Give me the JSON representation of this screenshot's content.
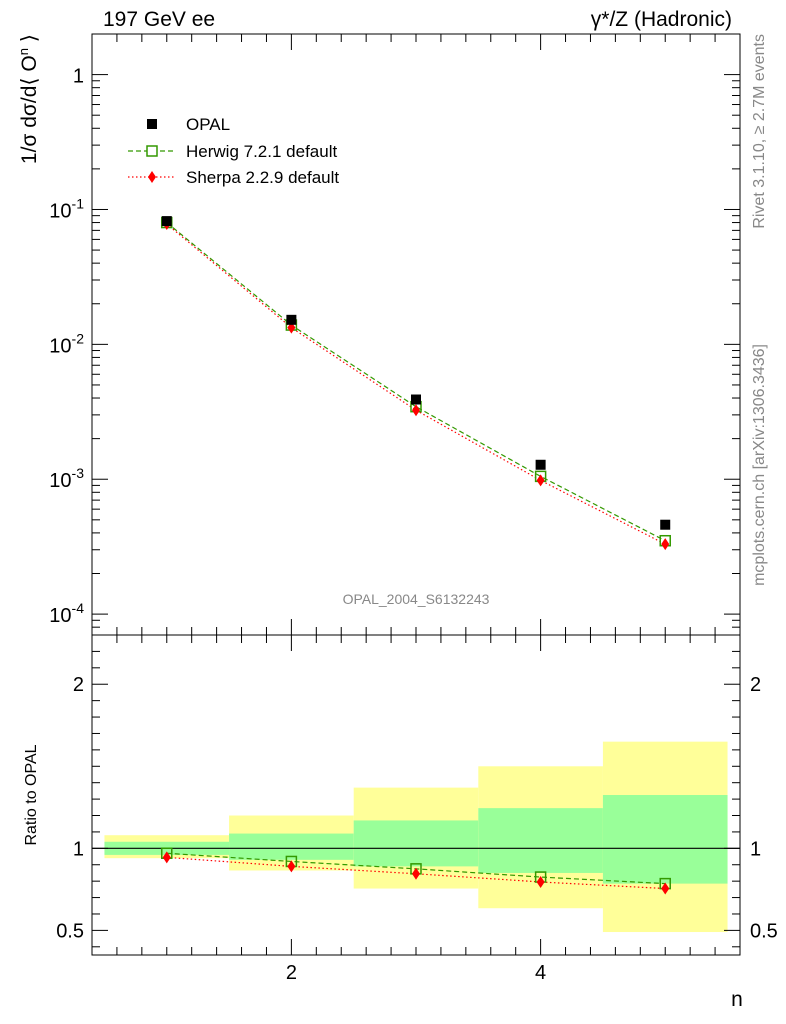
{
  "header": {
    "left_title": "197 GeV ee",
    "right_title": "γ*/Z (Hadronic)"
  },
  "side_labels": {
    "rivet": "Rivet 3.1.10, ≥ 2.7M events",
    "mcplots": "mcplots.cern.ch [arXiv:1306.3436]"
  },
  "watermark": "OPAL_2004_S6132243",
  "colors": {
    "data": "#000000",
    "herwig": "#339900",
    "sherpa": "#ff0000",
    "band_outer": "#ffff99",
    "band_inner": "#99ff99"
  },
  "chart_data": [
    {
      "type": "scatter",
      "panel": "main",
      "ylabel": "1/σ dσ/d⟨ O^n ⟩",
      "yscale": "log",
      "ylim": [
        7e-05,
        2.0
      ],
      "xlim": [
        0.4,
        5.6
      ],
      "y_tick_labels": [
        "1",
        "10^-1",
        "10^-2",
        "10^-3",
        "10^-4"
      ],
      "legend": [
        "OPAL",
        "Herwig 7.2.1 default",
        "Sherpa 2.2.9 default"
      ],
      "legend_position": "top-left",
      "x": [
        1,
        2,
        3,
        4,
        5
      ],
      "series": [
        {
          "name": "OPAL",
          "style": "markers-square",
          "values": [
            0.082,
            0.0152,
            0.0039,
            0.00128,
            0.00046
          ]
        },
        {
          "name": "Herwig 7.2.1 default",
          "style": "dashed-open-square",
          "values": [
            0.08,
            0.0139,
            0.00345,
            0.00105,
            0.00035
          ]
        },
        {
          "name": "Sherpa 2.2.9 default",
          "style": "dotted-diamond",
          "values": [
            0.078,
            0.0133,
            0.00325,
            0.00098,
            0.00033
          ]
        }
      ]
    },
    {
      "type": "scatter",
      "panel": "ratio",
      "xlabel": "n",
      "ylabel": "Ratio to OPAL",
      "ylim": [
        0.35,
        2.3
      ],
      "xlim": [
        0.4,
        5.6
      ],
      "x_tick_labels": [
        "2",
        "4"
      ],
      "y_tick_labels": [
        "0.5",
        "1",
        "2"
      ],
      "x": [
        1,
        2,
        3,
        4,
        5
      ],
      "bands": {
        "bins": [
          [
            0.5,
            1.5
          ],
          [
            1.5,
            2.5
          ],
          [
            2.5,
            3.5
          ],
          [
            3.5,
            4.5
          ],
          [
            4.5,
            5.5
          ]
        ],
        "outer_lo": [
          0.94,
          0.865,
          0.755,
          0.635,
          0.49
        ],
        "outer_hi": [
          1.08,
          1.2,
          1.37,
          1.5,
          1.65
        ],
        "inner_lo": [
          0.96,
          0.93,
          0.89,
          0.85,
          0.785
        ],
        "inner_hi": [
          1.04,
          1.09,
          1.17,
          1.245,
          1.325
        ]
      },
      "series": [
        {
          "name": "Herwig 7.2.1 default",
          "values": [
            0.97,
            0.92,
            0.875,
            0.825,
            0.785
          ]
        },
        {
          "name": "Sherpa 2.2.9 default",
          "values": [
            0.945,
            0.89,
            0.845,
            0.795,
            0.755
          ]
        }
      ]
    }
  ]
}
